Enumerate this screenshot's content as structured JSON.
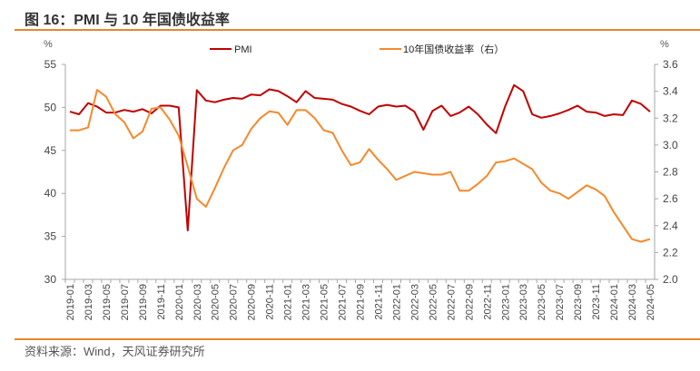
{
  "title": "图 16：PMI 与 10 年国债收益率",
  "source": "资料来源：Wind，天风证券研究所",
  "colors": {
    "pmi": "#c00000",
    "yield": "#f5892a",
    "rule": "#e8852f"
  },
  "chart_data": {
    "type": "line",
    "title": "PMI 与 10 年国债收益率",
    "left_unit": "%",
    "right_unit": "%",
    "ylim_left": [
      30,
      55
    ],
    "yticks_left": [
      30,
      35,
      40,
      45,
      50,
      55
    ],
    "ylim_right": [
      2.0,
      3.6
    ],
    "yticks_right": [
      "2.0",
      "2.2",
      "2.4",
      "2.6",
      "2.8",
      "3.0",
      "3.2",
      "3.4",
      "3.6"
    ],
    "x": [
      "2019-01",
      "2019-02",
      "2019-03",
      "2019-04",
      "2019-05",
      "2019-06",
      "2019-07",
      "2019-08",
      "2019-09",
      "2019-10",
      "2019-11",
      "2019-12",
      "2020-01",
      "2020-02",
      "2020-03",
      "2020-04",
      "2020-05",
      "2020-06",
      "2020-07",
      "2020-08",
      "2020-09",
      "2020-10",
      "2020-11",
      "2020-12",
      "2021-01",
      "2021-02",
      "2021-03",
      "2021-04",
      "2021-05",
      "2021-06",
      "2021-07",
      "2021-08",
      "2021-09",
      "2021-10",
      "2021-11",
      "2021-12",
      "2022-01",
      "2022-02",
      "2022-03",
      "2022-04",
      "2022-05",
      "2022-06",
      "2022-07",
      "2022-08",
      "2022-09",
      "2022-10",
      "2022-11",
      "2022-12",
      "2023-01",
      "2023-02",
      "2023-03",
      "2023-04",
      "2023-05",
      "2023-06",
      "2023-07",
      "2023-08",
      "2023-09",
      "2023-10",
      "2023-11",
      "2023-12",
      "2024-01",
      "2024-02",
      "2024-03",
      "2024-04",
      "2024-05"
    ],
    "legend": "top",
    "series": [
      {
        "name": "PMI",
        "axis": "left",
        "values": [
          49.5,
          49.2,
          50.5,
          50.1,
          49.4,
          49.4,
          49.7,
          49.5,
          49.8,
          49.3,
          50.2,
          50.2,
          50.0,
          35.7,
          52.0,
          50.8,
          50.6,
          50.9,
          51.1,
          51.0,
          51.5,
          51.4,
          52.1,
          51.9,
          51.3,
          50.6,
          51.9,
          51.1,
          51.0,
          50.9,
          50.4,
          50.1,
          49.6,
          49.2,
          50.1,
          50.3,
          50.1,
          50.2,
          49.5,
          47.4,
          49.6,
          50.2,
          49.0,
          49.4,
          50.1,
          49.2,
          48.0,
          47.0,
          50.1,
          52.6,
          51.9,
          49.2,
          48.8,
          49.0,
          49.3,
          49.7,
          50.2,
          49.5,
          49.4,
          49.0,
          49.2,
          49.1,
          50.8,
          50.4,
          49.5
        ]
      },
      {
        "name": "10年国债收益率（右）",
        "axis": "right",
        "values": [
          3.11,
          3.11,
          3.13,
          3.41,
          3.36,
          3.23,
          3.17,
          3.05,
          3.1,
          3.27,
          3.28,
          3.19,
          3.07,
          2.84,
          2.6,
          2.54,
          2.68,
          2.83,
          2.96,
          3.0,
          3.12,
          3.2,
          3.25,
          3.24,
          3.15,
          3.26,
          3.26,
          3.2,
          3.11,
          3.09,
          2.96,
          2.85,
          2.87,
          2.97,
          2.89,
          2.82,
          2.74,
          2.77,
          2.8,
          2.79,
          2.78,
          2.78,
          2.8,
          2.66,
          2.66,
          2.71,
          2.77,
          2.87,
          2.88,
          2.9,
          2.86,
          2.82,
          2.72,
          2.66,
          2.64,
          2.6,
          2.65,
          2.7,
          2.67,
          2.62,
          2.5,
          2.4,
          2.3,
          2.28,
          2.3
        ]
      }
    ]
  }
}
